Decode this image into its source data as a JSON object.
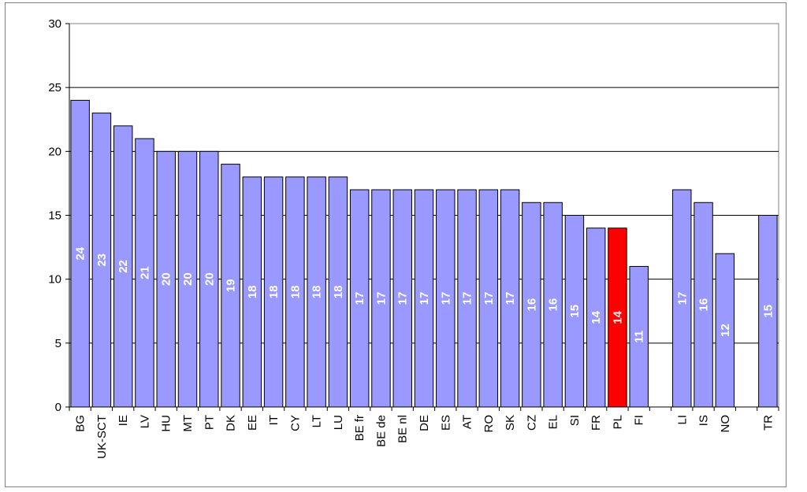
{
  "chart_data": {
    "type": "bar",
    "categories": [
      "BG",
      "UK-SCT",
      "IE",
      "LV",
      "HU",
      "MT",
      "PT",
      "DK",
      "EE",
      "IT",
      "CY",
      "LT",
      "LU",
      "BE fr",
      "BE de",
      "BE nl",
      "DE",
      "ES",
      "AT",
      "RO",
      "SK",
      "CZ",
      "EL",
      "SI",
      "FR",
      "PL",
      "FI",
      "",
      "LI",
      "IS",
      "NO",
      "",
      "TR"
    ],
    "values": [
      24,
      23,
      22,
      21,
      20,
      20,
      20,
      19,
      18,
      18,
      18,
      18,
      18,
      17,
      17,
      17,
      17,
      17,
      17,
      17,
      17,
      16,
      16,
      15,
      14,
      14,
      11,
      null,
      17,
      16,
      12,
      null,
      15
    ],
    "data_labels": [
      "24",
      "23",
      "22",
      "21",
      "20",
      "20",
      "20",
      "19",
      "18",
      "18",
      "18",
      "18",
      "18",
      "17",
      "17",
      "17",
      "17",
      "17",
      "17",
      "17",
      "17",
      "16",
      "16",
      "15",
      "14",
      "14",
      "11",
      "",
      "17",
      "16",
      "12",
      "",
      "15"
    ],
    "highlight_category": "PL",
    "ylim": [
      0,
      30
    ],
    "yticks": [
      "0",
      "5",
      "10",
      "15",
      "20",
      "25",
      "30"
    ],
    "grid": true,
    "title": "",
    "xlabel": "",
    "ylabel": "",
    "colors": {
      "bar": "#9999ff",
      "highlight": "#ff0000",
      "border": "#000000",
      "grid": "#000000"
    }
  }
}
